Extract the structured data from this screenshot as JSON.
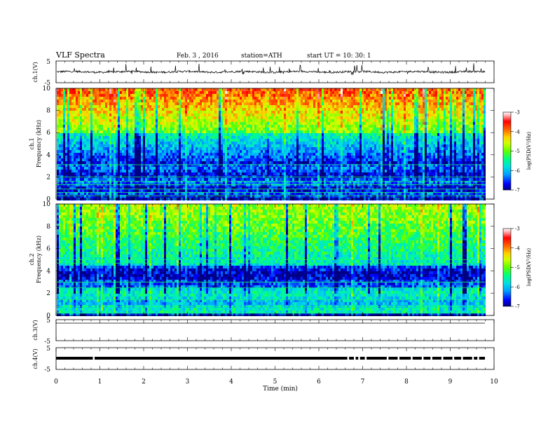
{
  "header": {
    "title": "VLF Spectra",
    "date": "Feb. 3 , 2016",
    "station": "station=ATH",
    "start": "start UT = 10: 30: 1"
  },
  "chart_data": [
    {
      "type": "line",
      "panel": "ch1-waveform",
      "ylabel": "ch.1(V)",
      "yticks": [
        "5",
        "-5"
      ],
      "ylim": [
        -5,
        5
      ],
      "baseline": 0,
      "xlim": [
        0,
        10
      ],
      "data_end": 9.8
    },
    {
      "type": "heatmap",
      "panel": "ch1-spectrogram",
      "ylabel_line1": "ch.1",
      "ylabel_line2": "Frequency (kHz)",
      "yticks": [
        "0",
        "2",
        "4",
        "6",
        "8",
        "10"
      ],
      "ylim": [
        0,
        10
      ],
      "xlim": [
        0,
        10
      ],
      "data_end": 9.8,
      "colorbar": {
        "label": "log(PSD(V²/Hz)",
        "range": [
          -7,
          -3
        ],
        "ticks": [
          "-3",
          "-4",
          "-5",
          "-6",
          "-7"
        ],
        "colors": [
          "#000080",
          "#0000ff",
          "#00a0ff",
          "#00e0e0",
          "#00ff80",
          "#60ff00",
          "#d0ff00",
          "#ffd000",
          "#ff6000",
          "#ff0000",
          "#ffa0a0",
          "#ffffff"
        ]
      }
    },
    {
      "type": "heatmap",
      "panel": "ch2-spectrogram",
      "ylabel_line1": "ch.2",
      "ylabel_line2": "Frequency (kHz)",
      "yticks": [
        "0",
        "2",
        "4",
        "6",
        "8",
        "10"
      ],
      "ylim": [
        0,
        10
      ],
      "xlim": [
        0,
        10
      ],
      "data_end": 9.8,
      "colorbar": {
        "label": "log(PSD(V²/Hz)",
        "range": [
          -7,
          -3
        ],
        "ticks": [
          "-3",
          "-4",
          "-5",
          "-6",
          "-7"
        ],
        "colors": [
          "#000080",
          "#0000ff",
          "#00a0ff",
          "#00e0e0",
          "#00ff80",
          "#60ff00",
          "#d0ff00",
          "#ffd000",
          "#ff6000",
          "#ff0000",
          "#ffa0a0",
          "#ffffff"
        ]
      }
    },
    {
      "type": "line",
      "panel": "ch3-waveform",
      "ylabel": "ch.3(V)",
      "yticks": [
        "5",
        "-5"
      ],
      "ylim": [
        -5,
        5
      ],
      "baseline": 0,
      "xlim": [
        0,
        10
      ],
      "data_end": 9.8
    },
    {
      "type": "line",
      "panel": "ch4-waveform",
      "ylabel": "ch.4(V)",
      "yticks": [
        "5",
        "-5"
      ],
      "ylim": [
        -5,
        5
      ],
      "baseline": 0,
      "xlim": [
        0,
        10
      ],
      "data_end": 9.8
    }
  ],
  "xaxis": {
    "label": "Time (min)",
    "ticks": [
      "0",
      "1",
      "2",
      "3",
      "4",
      "5",
      "6",
      "7",
      "8",
      "9",
      "10"
    ],
    "range": [
      0,
      10
    ]
  }
}
